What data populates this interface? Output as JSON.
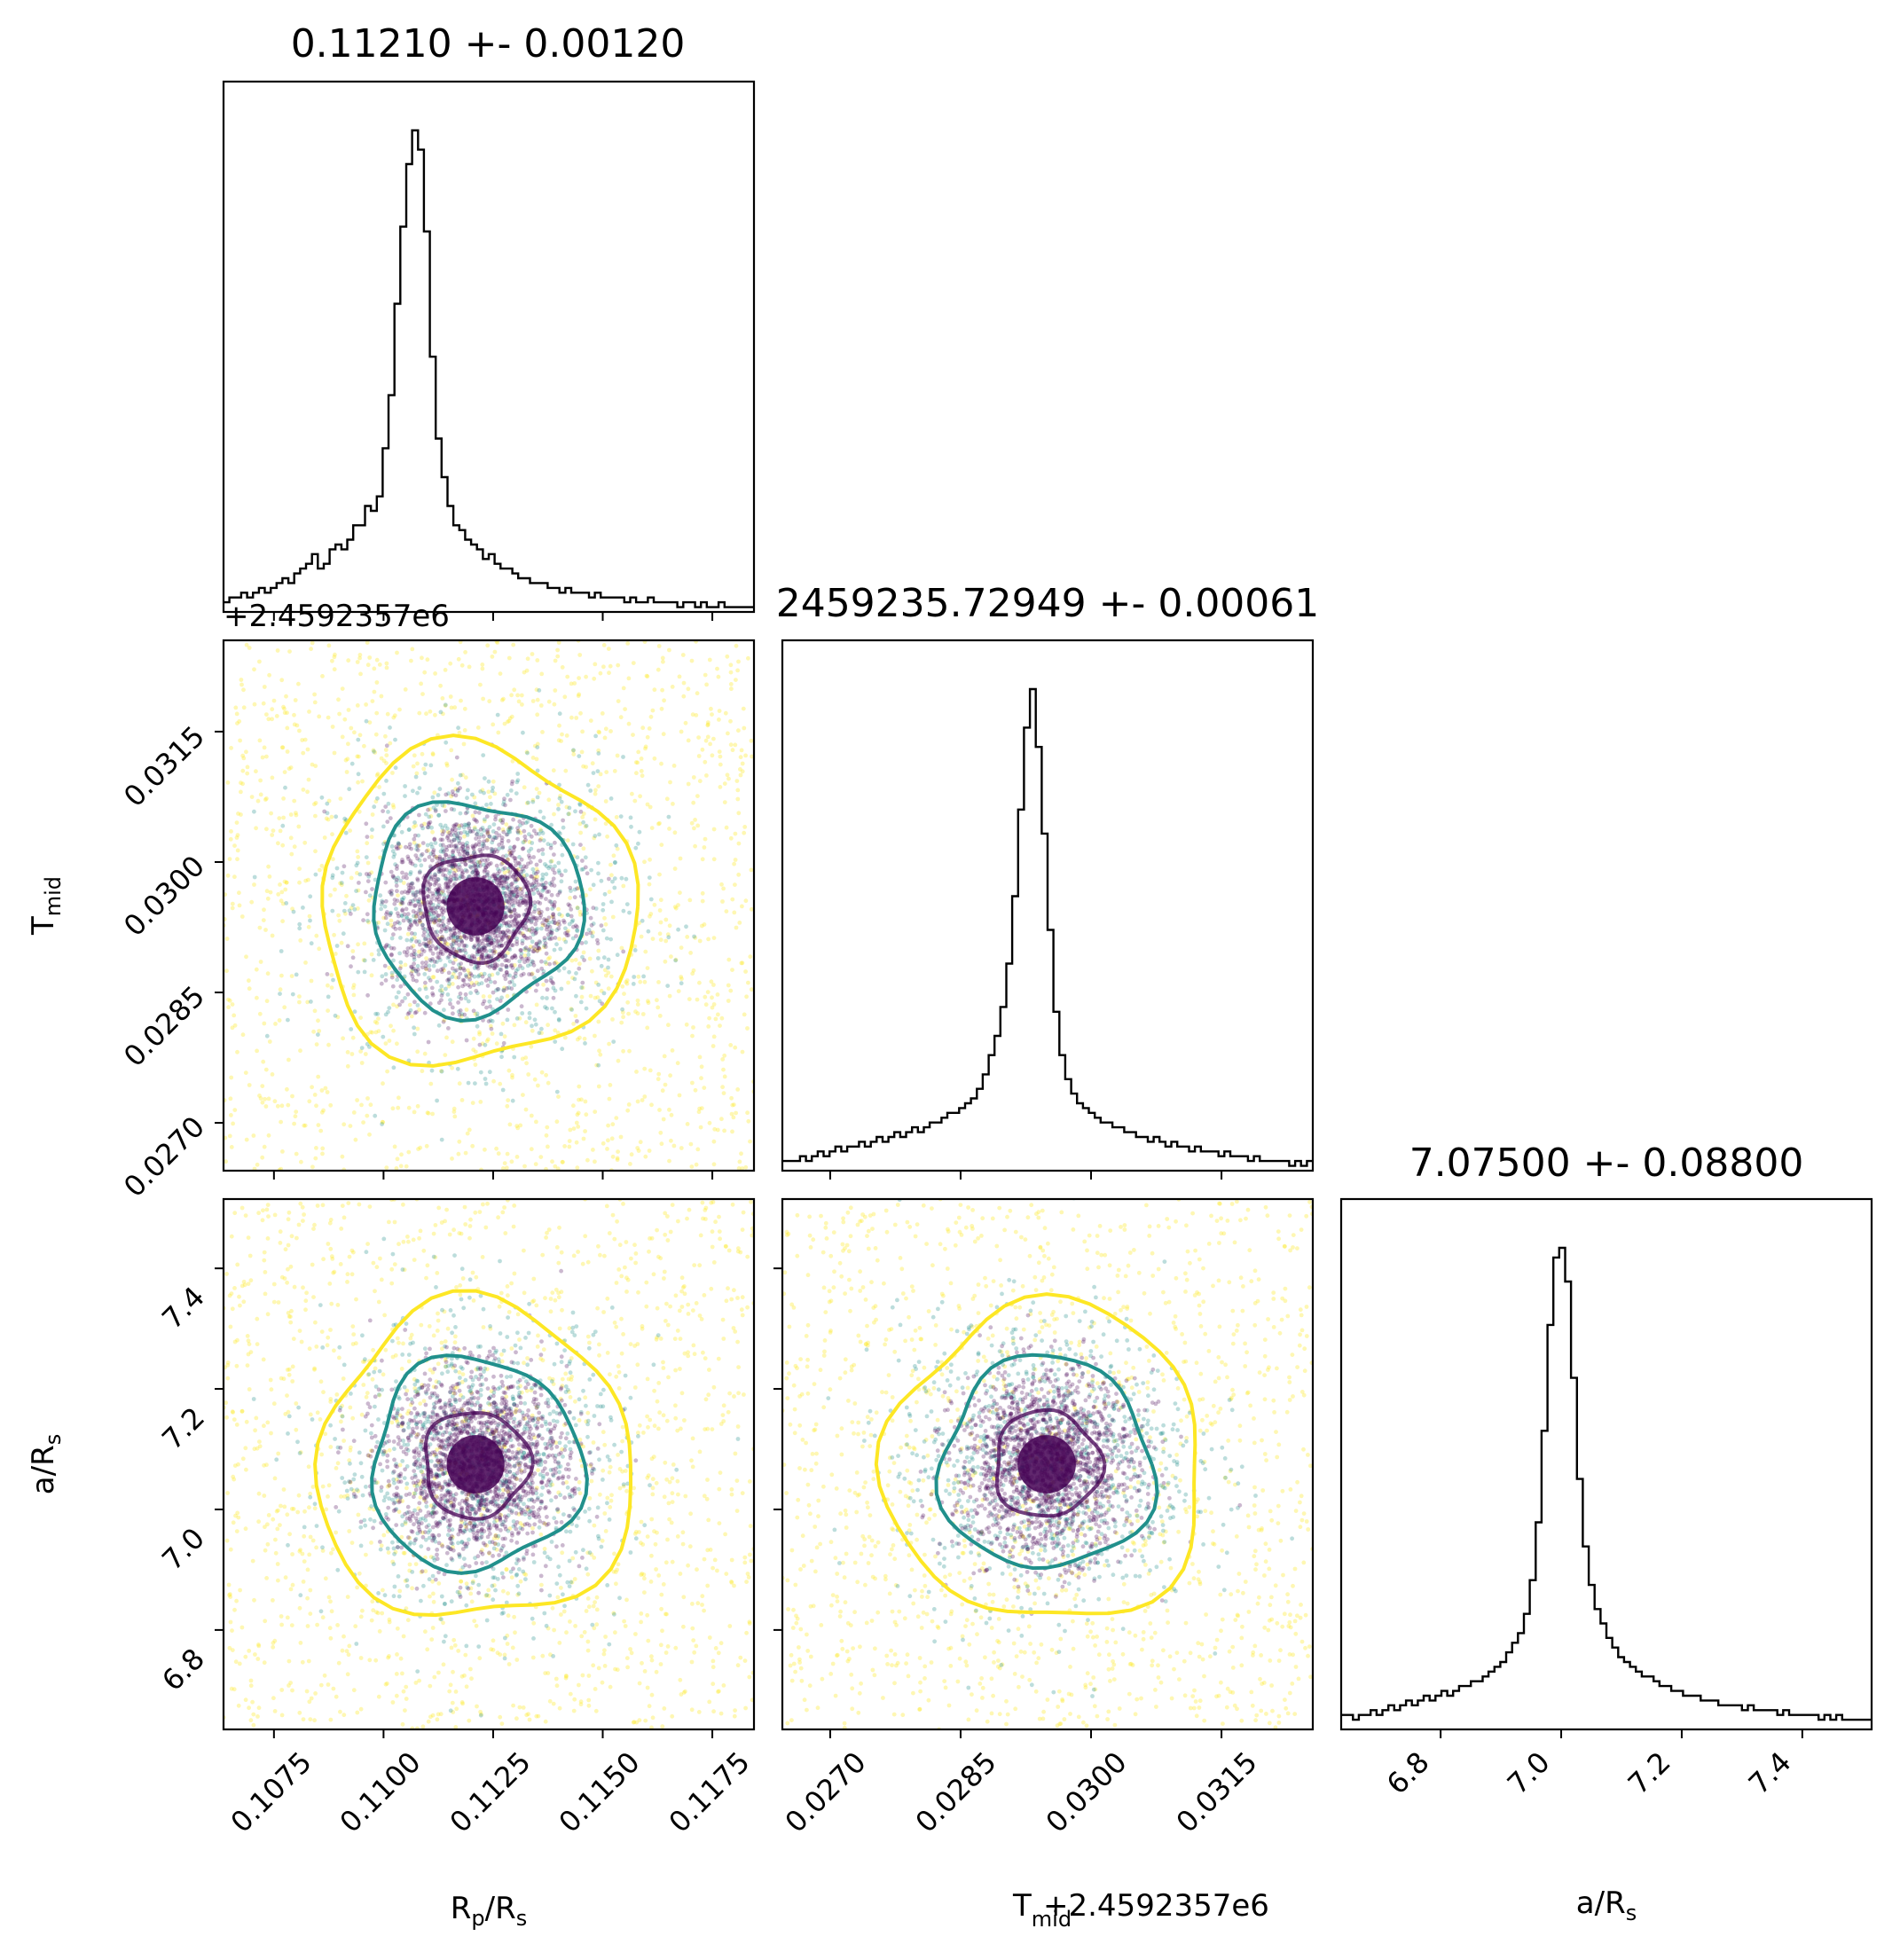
{
  "colors": {
    "inner": "#440154",
    "mid": "#21908c",
    "outer": "#fde725",
    "axis": "#000000"
  },
  "chart_data": {
    "type": "corner",
    "parameters": [
      "Rp/Rs",
      "Tmid",
      "a/Rs"
    ],
    "titles": [
      "0.11210 +- 0.00120",
      "2459235.72949 +- 0.00061",
      "7.07500 +- 0.08800"
    ],
    "offset_text": "+2.4592357e6",
    "axis_labels": {
      "rp_base": "R",
      "rp_sub": "p",
      "rp_mid": "/R",
      "rp_sub2": "s",
      "t_base": "T",
      "t_sub": "mid",
      "a_base": "a/R",
      "a_sub": "s"
    },
    "x_bottom_offset_label": "+2.4592357e6",
    "ticks": {
      "rp": [
        "0.1075",
        "0.1100",
        "0.1125",
        "0.1150",
        "0.1175"
      ],
      "tmid": [
        "0.0270",
        "0.0285",
        "0.0300",
        "0.0315"
      ],
      "ars": [
        "6.8",
        "7.0",
        "7.2",
        "7.4"
      ]
    },
    "tick_values": {
      "rp": [
        0.1075,
        0.11,
        0.1125,
        0.115,
        0.1175
      ],
      "tmid": [
        0.027,
        0.0285,
        0.03,
        0.0315
      ],
      "ars": [
        6.8,
        7.0,
        7.2,
        7.4
      ]
    },
    "ranges": {
      "rp": [
        0.10635,
        0.11845
      ],
      "tmid": [
        0.02645,
        0.03255
      ],
      "ars": [
        6.635,
        7.515
      ]
    },
    "centers": {
      "rp": 0.1121,
      "tmid": 0.02949,
      "ars": 7.075
    },
    "sigmas": {
      "rp": 0.0012,
      "tmid": 0.00061,
      "ars": 0.088
    },
    "histograms": [
      {
        "param": "rp",
        "bins": 90,
        "range": [
          0.10635,
          0.11845
        ],
        "peak_value": 0.1121,
        "relative_counts": [
          0.02,
          0.03,
          0.03,
          0.04,
          0.03,
          0.04,
          0.05,
          0.04,
          0.05,
          0.06,
          0.07,
          0.06,
          0.08,
          0.09,
          0.1,
          0.12,
          0.09,
          0.1,
          0.13,
          0.14,
          0.13,
          0.15,
          0.18,
          0.18,
          0.22,
          0.21,
          0.24,
          0.34,
          0.45,
          0.64,
          0.8,
          0.93,
          1.0,
          0.96,
          0.79,
          0.53,
          0.36,
          0.28,
          0.22,
          0.18,
          0.17,
          0.15,
          0.14,
          0.13,
          0.11,
          0.12,
          0.1,
          0.09,
          0.09,
          0.08,
          0.07,
          0.07,
          0.06,
          0.06,
          0.06,
          0.05,
          0.05,
          0.04,
          0.05,
          0.04,
          0.04,
          0.04,
          0.03,
          0.04,
          0.03,
          0.03,
          0.03,
          0.03,
          0.02,
          0.03,
          0.02,
          0.02,
          0.03,
          0.02,
          0.02,
          0.02,
          0.02,
          0.01,
          0.02,
          0.02,
          0.01,
          0.02,
          0.01,
          0.01,
          0.02,
          0.01,
          0.01,
          0.01,
          0.01,
          0.01
        ]
      },
      {
        "param": "tmid",
        "bins": 90,
        "range": [
          0.02645,
          0.03255
        ],
        "peak_value": 0.02949,
        "relative_counts": [
          0.02,
          0.02,
          0.02,
          0.03,
          0.02,
          0.03,
          0.04,
          0.03,
          0.04,
          0.05,
          0.04,
          0.05,
          0.05,
          0.06,
          0.05,
          0.06,
          0.07,
          0.06,
          0.07,
          0.08,
          0.07,
          0.08,
          0.09,
          0.08,
          0.09,
          0.1,
          0.1,
          0.11,
          0.12,
          0.12,
          0.13,
          0.14,
          0.15,
          0.17,
          0.2,
          0.24,
          0.28,
          0.34,
          0.43,
          0.57,
          0.75,
          0.92,
          1.0,
          0.88,
          0.7,
          0.5,
          0.33,
          0.24,
          0.19,
          0.16,
          0.14,
          0.13,
          0.12,
          0.11,
          0.1,
          0.1,
          0.09,
          0.09,
          0.08,
          0.08,
          0.07,
          0.07,
          0.06,
          0.07,
          0.06,
          0.05,
          0.06,
          0.05,
          0.05,
          0.04,
          0.05,
          0.04,
          0.04,
          0.04,
          0.03,
          0.04,
          0.03,
          0.03,
          0.03,
          0.02,
          0.03,
          0.02,
          0.02,
          0.02,
          0.02,
          0.02,
          0.01,
          0.02,
          0.01,
          0.02
        ]
      },
      {
        "param": "ars",
        "bins": 90,
        "range": [
          6.635,
          7.515
        ],
        "peak_value": 7.075,
        "relative_counts": [
          0.03,
          0.03,
          0.02,
          0.03,
          0.03,
          0.04,
          0.03,
          0.04,
          0.05,
          0.04,
          0.05,
          0.06,
          0.05,
          0.06,
          0.07,
          0.06,
          0.07,
          0.08,
          0.07,
          0.08,
          0.09,
          0.09,
          0.1,
          0.1,
          0.11,
          0.12,
          0.13,
          0.14,
          0.16,
          0.18,
          0.2,
          0.24,
          0.31,
          0.43,
          0.62,
          0.84,
          0.98,
          1.0,
          0.93,
          0.73,
          0.52,
          0.38,
          0.3,
          0.25,
          0.22,
          0.19,
          0.17,
          0.15,
          0.14,
          0.13,
          0.12,
          0.11,
          0.11,
          0.1,
          0.09,
          0.09,
          0.08,
          0.08,
          0.07,
          0.07,
          0.07,
          0.06,
          0.06,
          0.06,
          0.05,
          0.05,
          0.05,
          0.05,
          0.04,
          0.05,
          0.04,
          0.04,
          0.04,
          0.04,
          0.03,
          0.04,
          0.03,
          0.03,
          0.03,
          0.03,
          0.03,
          0.02,
          0.03,
          0.02,
          0.03,
          0.02,
          0.02,
          0.02,
          0.02,
          0.02
        ]
      }
    ],
    "scatter_panels": [
      {
        "x": "rp",
        "y": "tmid"
      },
      {
        "x": "rp",
        "y": "ars"
      },
      {
        "x": "tmid",
        "y": "ars"
      }
    ],
    "contour_levels": [
      {
        "level": "inner",
        "sigma_scale": 1.0
      },
      {
        "level": "mid",
        "sigma_scale": 2.0
      },
      {
        "level": "outer",
        "sigma_scale": 3.0
      }
    ],
    "grid": false,
    "legend": "none"
  }
}
